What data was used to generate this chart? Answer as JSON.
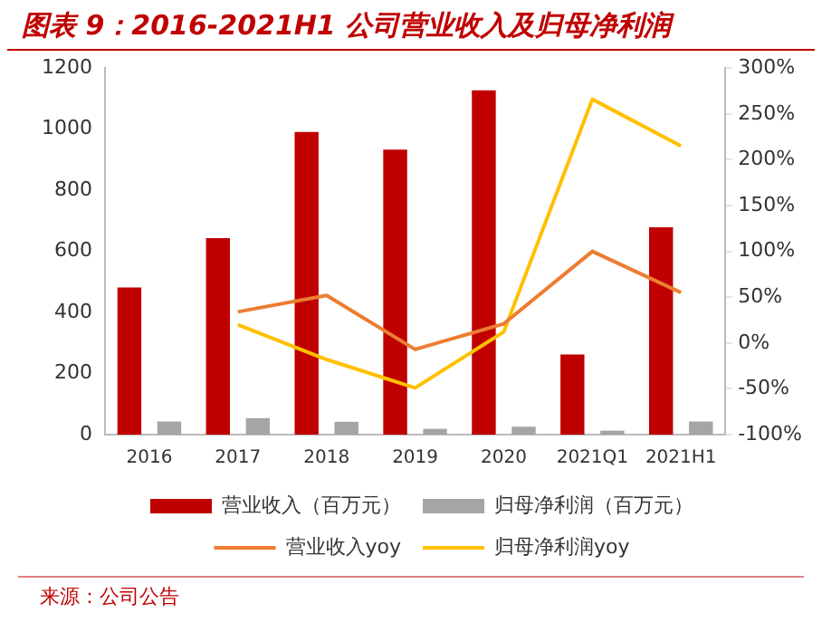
{
  "chart_data": {
    "type": "bar",
    "title": "图表 9：2016-2021H1 公司营业收入及归母净利润",
    "categories": [
      "2016",
      "2017",
      "2018",
      "2019",
      "2020",
      "2021Q1",
      "2021H1"
    ],
    "series": [
      {
        "name": "营业收入（百万元）",
        "color": "#c00000",
        "values": [
          482,
          643,
          991,
          933,
          1127,
          262,
          679
        ]
      },
      {
        "name": "归母净利润（百万元）",
        "color": "#a5a5a5",
        "values": [
          43,
          54,
          42,
          19,
          26,
          13,
          43
        ]
      },
      {
        "name": "营业收入yoy",
        "type": "line",
        "axis": "y2",
        "color": "#ed7d31",
        "values": [
          null,
          34,
          52,
          -7,
          21,
          100,
          55
        ]
      },
      {
        "name": "归母净利润yoy",
        "type": "line",
        "axis": "y2",
        "color": "#ffc000",
        "values": [
          null,
          20,
          -18,
          -49,
          12,
          266,
          215
        ]
      }
    ],
    "ylim": [
      0,
      1200
    ],
    "yticks": [
      0,
      200,
      400,
      600,
      800,
      1000,
      1200
    ],
    "y2lim": [
      -100,
      300
    ],
    "y2ticks": [
      {
        "value": -100,
        "label": "-100%"
      },
      {
        "value": -50,
        "label": "-50%"
      },
      {
        "value": 0,
        "label": "0%"
      },
      {
        "value": 50,
        "label": "50%"
      },
      {
        "value": 100,
        "label": "100%"
      },
      {
        "value": 150,
        "label": "150%"
      },
      {
        "value": 200,
        "label": "200%"
      },
      {
        "value": 250,
        "label": "250%"
      },
      {
        "value": 300,
        "label": "300%"
      }
    ],
    "grid": false,
    "legend": "bottom",
    "marker": "none",
    "annotations": [
      "来源：公司公告"
    ]
  }
}
